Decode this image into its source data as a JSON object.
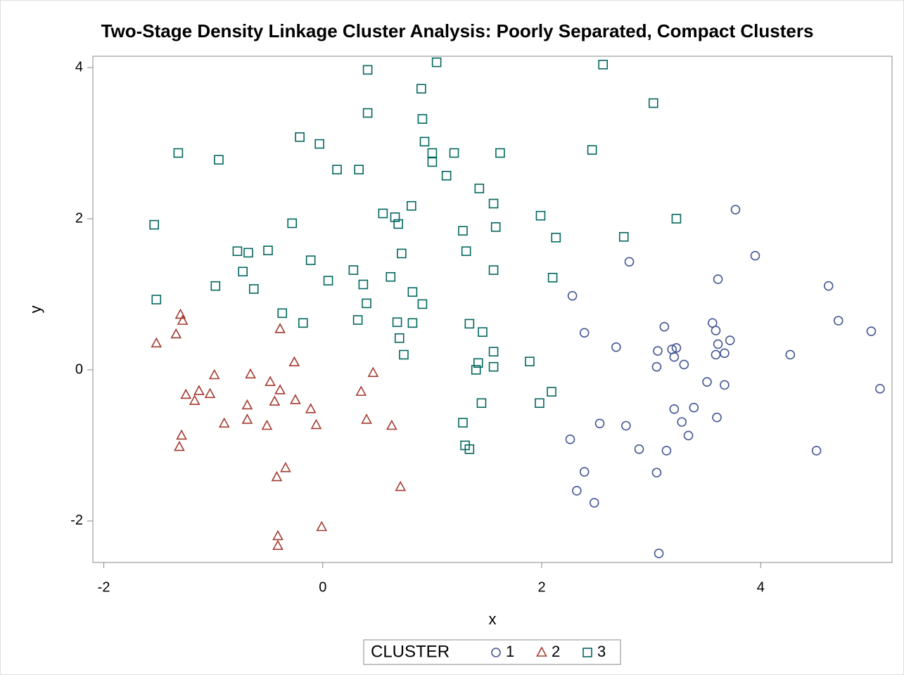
{
  "chart_data": {
    "type": "scatter",
    "title": "Two-Stage Density Linkage Cluster Analysis: Poorly Separated, Compact Clusters",
    "x_label": "x",
    "y_label": "y",
    "legend_title": "CLUSTER",
    "legend": "bottom",
    "xlim": [
      -2.1,
      5.2
    ],
    "ylim": [
      -2.55,
      4.15
    ],
    "xticks": [
      -2,
      0,
      2,
      4
    ],
    "yticks": [
      -2,
      0,
      2,
      4
    ],
    "series": [
      {
        "name": "1",
        "color": "#445694",
        "marker": "circle",
        "x": [
          3.77,
          3.95,
          2.8,
          3.61,
          4.62,
          2.28,
          4.71,
          3.56,
          3.12,
          5.01,
          3.59,
          2.39,
          3.72,
          3.61,
          2.68,
          3.23,
          3.19,
          3.06,
          3.67,
          3.59,
          4.27,
          3.21,
          3.3,
          3.05,
          3.51,
          3.67,
          5.09,
          3.39,
          3.21,
          3.6,
          3.28,
          2.53,
          2.77,
          3.34,
          2.26,
          2.89,
          3.14,
          4.51,
          2.39,
          3.05,
          2.32,
          2.48,
          3.07
        ],
        "values": [
          2.12,
          1.51,
          1.43,
          1.2,
          1.11,
          0.98,
          0.65,
          0.62,
          0.57,
          0.51,
          0.52,
          0.49,
          0.39,
          0.34,
          0.3,
          0.29,
          0.27,
          0.25,
          0.22,
          0.2,
          0.2,
          0.17,
          0.07,
          0.04,
          -0.16,
          -0.2,
          -0.25,
          -0.5,
          -0.52,
          -0.63,
          -0.69,
          -0.71,
          -0.74,
          -0.87,
          -0.92,
          -1.05,
          -1.07,
          -1.07,
          -1.35,
          -1.36,
          -1.6,
          -1.76,
          -2.43
        ]
      },
      {
        "name": "2",
        "color": "#a23a2e",
        "marker": "triangle",
        "x": [
          -1.3,
          -1.28,
          -1.34,
          -1.52,
          -0.39,
          -0.26,
          -0.99,
          -0.66,
          0.46,
          -0.48,
          -0.39,
          -1.13,
          -1.03,
          -1.25,
          0.35,
          -1.17,
          -0.44,
          -0.25,
          -0.69,
          -0.11,
          -0.69,
          0.4,
          -0.9,
          -0.06,
          -0.51,
          0.63,
          -1.29,
          -1.31,
          -0.34,
          -0.42,
          0.71,
          -0.01,
          -0.41,
          -0.41
        ],
        "values": [
          0.73,
          0.65,
          0.47,
          0.35,
          0.54,
          0.1,
          -0.07,
          -0.06,
          -0.04,
          -0.16,
          -0.27,
          -0.28,
          -0.32,
          -0.33,
          -0.29,
          -0.41,
          -0.42,
          -0.4,
          -0.47,
          -0.52,
          -0.66,
          -0.66,
          -0.71,
          -0.73,
          -0.74,
          -0.74,
          -0.87,
          -1.02,
          -1.3,
          -1.42,
          -1.55,
          -2.08,
          -2.2,
          -2.33
        ]
      },
      {
        "name": "3",
        "color": "#01665e",
        "marker": "square",
        "x": [
          1.04,
          2.56,
          0.41,
          0.9,
          3.02,
          0.41,
          0.91,
          0.93,
          -0.21,
          -0.03,
          -1.32,
          1.0,
          1.2,
          1.62,
          2.46,
          -0.95,
          1.0,
          0.13,
          0.33,
          1.13,
          1.43,
          1.56,
          0.81,
          0.55,
          1.99,
          0.66,
          3.23,
          0.69,
          -1.54,
          -0.28,
          1.58,
          1.28,
          2.13,
          2.75,
          -0.78,
          -0.68,
          -0.5,
          0.72,
          1.31,
          -0.11,
          -0.73,
          0.28,
          1.56,
          0.62,
          2.1,
          0.05,
          0.37,
          -0.98,
          -0.63,
          0.82,
          -1.52,
          0.4,
          0.91,
          -0.37,
          -0.18,
          0.32,
          0.68,
          0.82,
          1.34,
          1.46,
          0.7,
          1.56,
          0.74,
          1.89,
          1.42,
          1.4,
          1.56,
          2.09,
          1.98,
          1.45,
          1.28,
          1.3,
          1.34
        ],
        "values": [
          4.07,
          4.04,
          3.97,
          3.72,
          3.53,
          3.4,
          3.32,
          3.02,
          3.08,
          2.99,
          2.87,
          2.87,
          2.87,
          2.87,
          2.91,
          2.78,
          2.75,
          2.65,
          2.65,
          2.57,
          2.4,
          2.2,
          2.17,
          2.07,
          2.04,
          2.02,
          2.0,
          1.93,
          1.92,
          1.94,
          1.89,
          1.84,
          1.75,
          1.76,
          1.57,
          1.55,
          1.58,
          1.54,
          1.57,
          1.45,
          1.3,
          1.32,
          1.32,
          1.23,
          1.22,
          1.18,
          1.13,
          1.11,
          1.07,
          1.03,
          0.93,
          0.88,
          0.87,
          0.75,
          0.62,
          0.66,
          0.63,
          0.62,
          0.61,
          0.5,
          0.42,
          0.24,
          0.2,
          0.11,
          0.09,
          0.0,
          0.04,
          -0.29,
          -0.44,
          -0.44,
          -0.7,
          -1.0,
          -1.05
        ]
      }
    ]
  }
}
